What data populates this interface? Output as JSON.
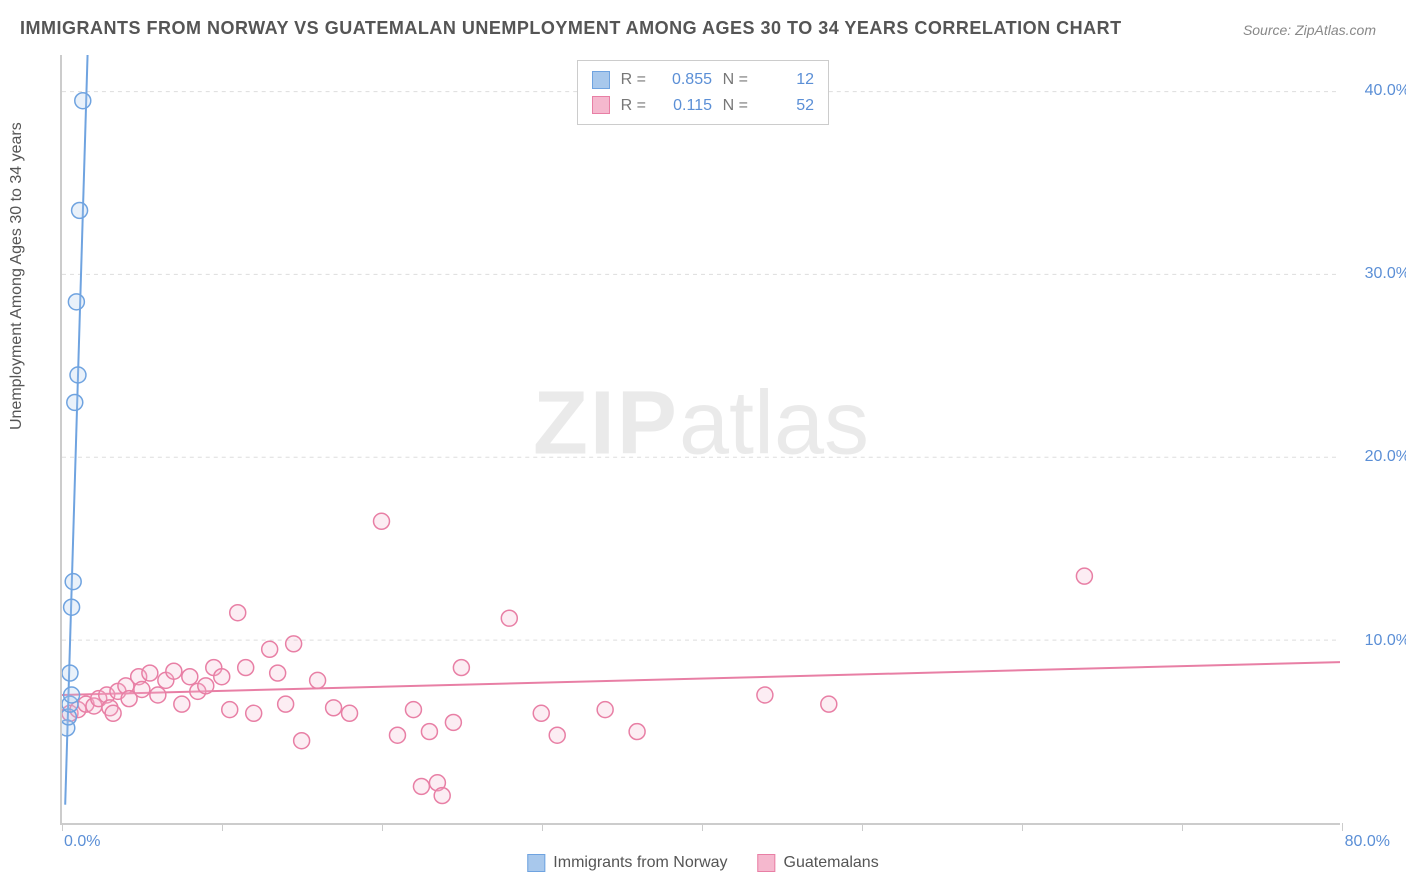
{
  "title": "IMMIGRANTS FROM NORWAY VS GUATEMALAN UNEMPLOYMENT AMONG AGES 30 TO 34 YEARS CORRELATION CHART",
  "source": "Source: ZipAtlas.com",
  "y_axis_title": "Unemployment Among Ages 30 to 34 years",
  "watermark_bold": "ZIP",
  "watermark_rest": "atlas",
  "chart": {
    "type": "scatter",
    "background_color": "#ffffff",
    "grid_color": "#dddddd",
    "axis_color": "#cccccc",
    "xlim": [
      0,
      80
    ],
    "ylim": [
      0,
      42
    ],
    "x_ticks": [
      0,
      10,
      20,
      30,
      40,
      50,
      60,
      70,
      80
    ],
    "x_tick_labels": {
      "0": "0.0%",
      "80": "80.0%"
    },
    "y_ticks": [
      10,
      20,
      30,
      40
    ],
    "y_tick_labels": {
      "10": "10.0%",
      "20": "20.0%",
      "30": "30.0%",
      "40": "40.0%"
    },
    "label_fontsize": 16,
    "label_color": "#5b8fd6",
    "marker_radius": 8,
    "marker_stroke_width": 1.5,
    "marker_fill_opacity": 0.25,
    "trend_line_width": 2
  },
  "series": {
    "norway": {
      "label": "Immigrants from Norway",
      "stroke_color": "#6fa3e0",
      "fill_color": "#a8c8ec",
      "R": "0.855",
      "N": "12",
      "points": [
        [
          0.3,
          5.2
        ],
        [
          0.4,
          5.8
        ],
        [
          0.5,
          6.5
        ],
        [
          0.6,
          7.0
        ],
        [
          0.5,
          8.2
        ],
        [
          0.6,
          11.8
        ],
        [
          0.7,
          13.2
        ],
        [
          0.8,
          23.0
        ],
        [
          1.0,
          24.5
        ],
        [
          0.9,
          28.5
        ],
        [
          1.1,
          33.5
        ],
        [
          1.3,
          39.5
        ]
      ],
      "trend": {
        "x1": 0.2,
        "y1": 1.0,
        "x2": 1.6,
        "y2": 42.0
      }
    },
    "guatemalans": {
      "label": "Guatemalans",
      "stroke_color": "#e87fa5",
      "fill_color": "#f5b8ce",
      "R": "0.115",
      "N": "52",
      "points": [
        [
          0.5,
          6.0
        ],
        [
          1.0,
          6.2
        ],
        [
          1.5,
          6.5
        ],
        [
          2.0,
          6.4
        ],
        [
          2.3,
          6.8
        ],
        [
          2.8,
          7.0
        ],
        [
          3.0,
          6.3
        ],
        [
          3.5,
          7.2
        ],
        [
          4.0,
          7.5
        ],
        [
          4.2,
          6.8
        ],
        [
          4.8,
          8.0
        ],
        [
          5.0,
          7.3
        ],
        [
          5.5,
          8.2
        ],
        [
          6.0,
          7.0
        ],
        [
          6.5,
          7.8
        ],
        [
          7.0,
          8.3
        ],
        [
          7.5,
          6.5
        ],
        [
          8.0,
          8.0
        ],
        [
          8.5,
          7.2
        ],
        [
          9.0,
          7.5
        ],
        [
          9.5,
          8.5
        ],
        [
          10.0,
          8.0
        ],
        [
          10.5,
          6.2
        ],
        [
          11.0,
          11.5
        ],
        [
          11.5,
          8.5
        ],
        [
          12.0,
          6.0
        ],
        [
          13.0,
          9.5
        ],
        [
          13.5,
          8.2
        ],
        [
          14.0,
          6.5
        ],
        [
          14.5,
          9.8
        ],
        [
          15.0,
          4.5
        ],
        [
          16.0,
          7.8
        ],
        [
          17.0,
          6.3
        ],
        [
          18.0,
          6.0
        ],
        [
          20.0,
          16.5
        ],
        [
          21.0,
          4.8
        ],
        [
          22.0,
          6.2
        ],
        [
          22.5,
          2.0
        ],
        [
          23.0,
          5.0
        ],
        [
          23.5,
          2.2
        ],
        [
          23.8,
          1.5
        ],
        [
          24.5,
          5.5
        ],
        [
          25.0,
          8.5
        ],
        [
          28.0,
          11.2
        ],
        [
          30.0,
          6.0
        ],
        [
          31.0,
          4.8
        ],
        [
          34.0,
          6.2
        ],
        [
          36.0,
          5.0
        ],
        [
          44.0,
          7.0
        ],
        [
          48.0,
          6.5
        ],
        [
          64.0,
          13.5
        ],
        [
          3.2,
          6.0
        ]
      ],
      "trend": {
        "x1": 0,
        "y1": 7.0,
        "x2": 80,
        "y2": 8.8
      }
    }
  },
  "legend_top": {
    "R_label": "R =",
    "N_label": "N ="
  }
}
